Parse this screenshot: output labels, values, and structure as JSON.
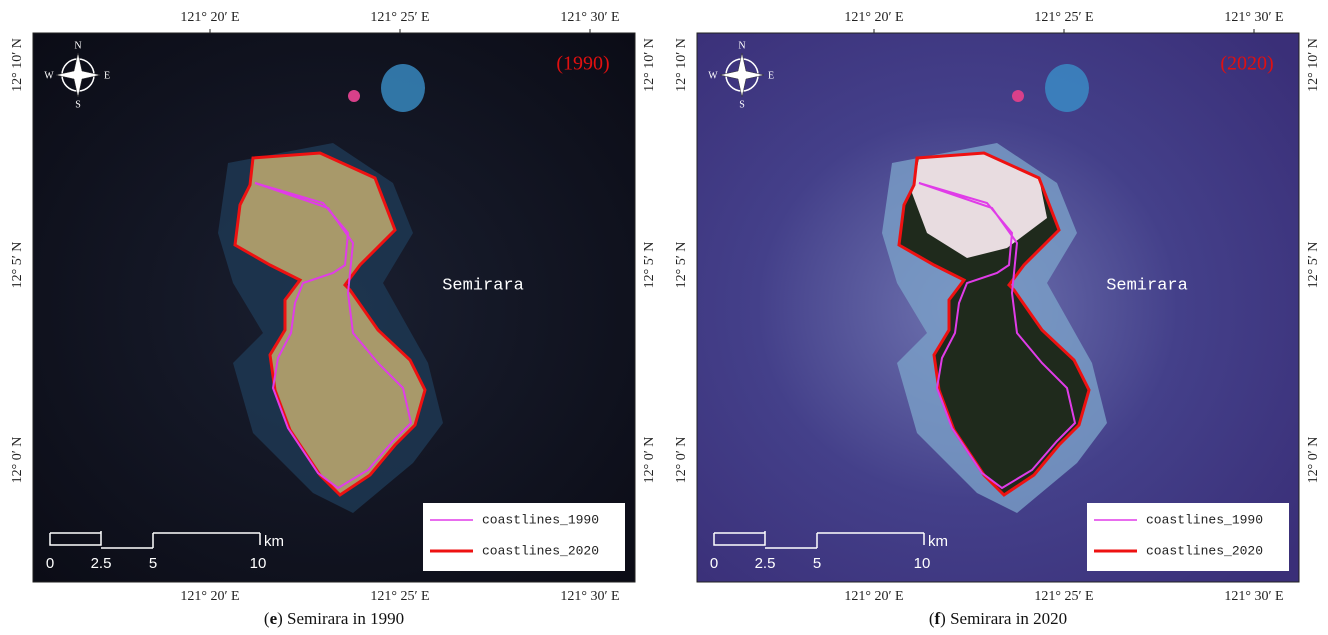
{
  "panels": [
    {
      "year": "(1990)",
      "island": "Semirara",
      "caption": [
        {
          "text": "(",
          "bold": false
        },
        {
          "text": "e",
          "bold": true
        },
        {
          "text": ") Semirara in 1990",
          "bold": false
        }
      ],
      "legend": [
        {
          "name": "coastlines_1990",
          "color": "#e03ce8"
        },
        {
          "name": "coastlines_2020",
          "color": "#ee1111"
        }
      ],
      "scale": {
        "labels": [
          "0",
          "2.5",
          "5",
          "10"
        ],
        "unit": "km"
      },
      "compass": [
        "N",
        "S",
        "W",
        "E"
      ],
      "top_labels": [
        "121° 20′ E",
        "121° 25′ E",
        "121° 30′ E"
      ],
      "bottom_labels": [
        "121° 20′ E",
        "121° 25′ E",
        "121° 30′ E"
      ],
      "left_labels": [
        "12° 10′ N",
        "12° 5′ N",
        "12° 0′ N"
      ],
      "right_labels": [
        "12° 10′ N",
        "12° 5′ N",
        "12° 0′ N"
      ]
    },
    {
      "year": "(2020)",
      "island": "Semirara",
      "caption": [
        {
          "text": "(",
          "bold": false
        },
        {
          "text": "f",
          "bold": true
        },
        {
          "text": ") Semirara in 2020",
          "bold": false
        }
      ],
      "legend": [
        {
          "name": "coastlines_1990",
          "color": "#e03ce8"
        },
        {
          "name": "coastlines_2020",
          "color": "#ee1111"
        }
      ],
      "scale": {
        "labels": [
          "0",
          "2.5",
          "5",
          "10"
        ],
        "unit": "km"
      },
      "compass": [
        "N",
        "S",
        "W",
        "E"
      ],
      "top_labels": [
        "121° 20′ E",
        "121° 25′ E",
        "121° 30′ E"
      ],
      "bottom_labels": [
        "121° 20′ E",
        "121° 25′ E",
        "121° 30′ E"
      ],
      "left_labels": [
        "12° 10′ N",
        "12° 5′ N",
        "12° 0′ N"
      ],
      "right_labels": [
        "12° 10′ N",
        "12° 5′ N",
        "12° 0′ N"
      ]
    }
  ]
}
